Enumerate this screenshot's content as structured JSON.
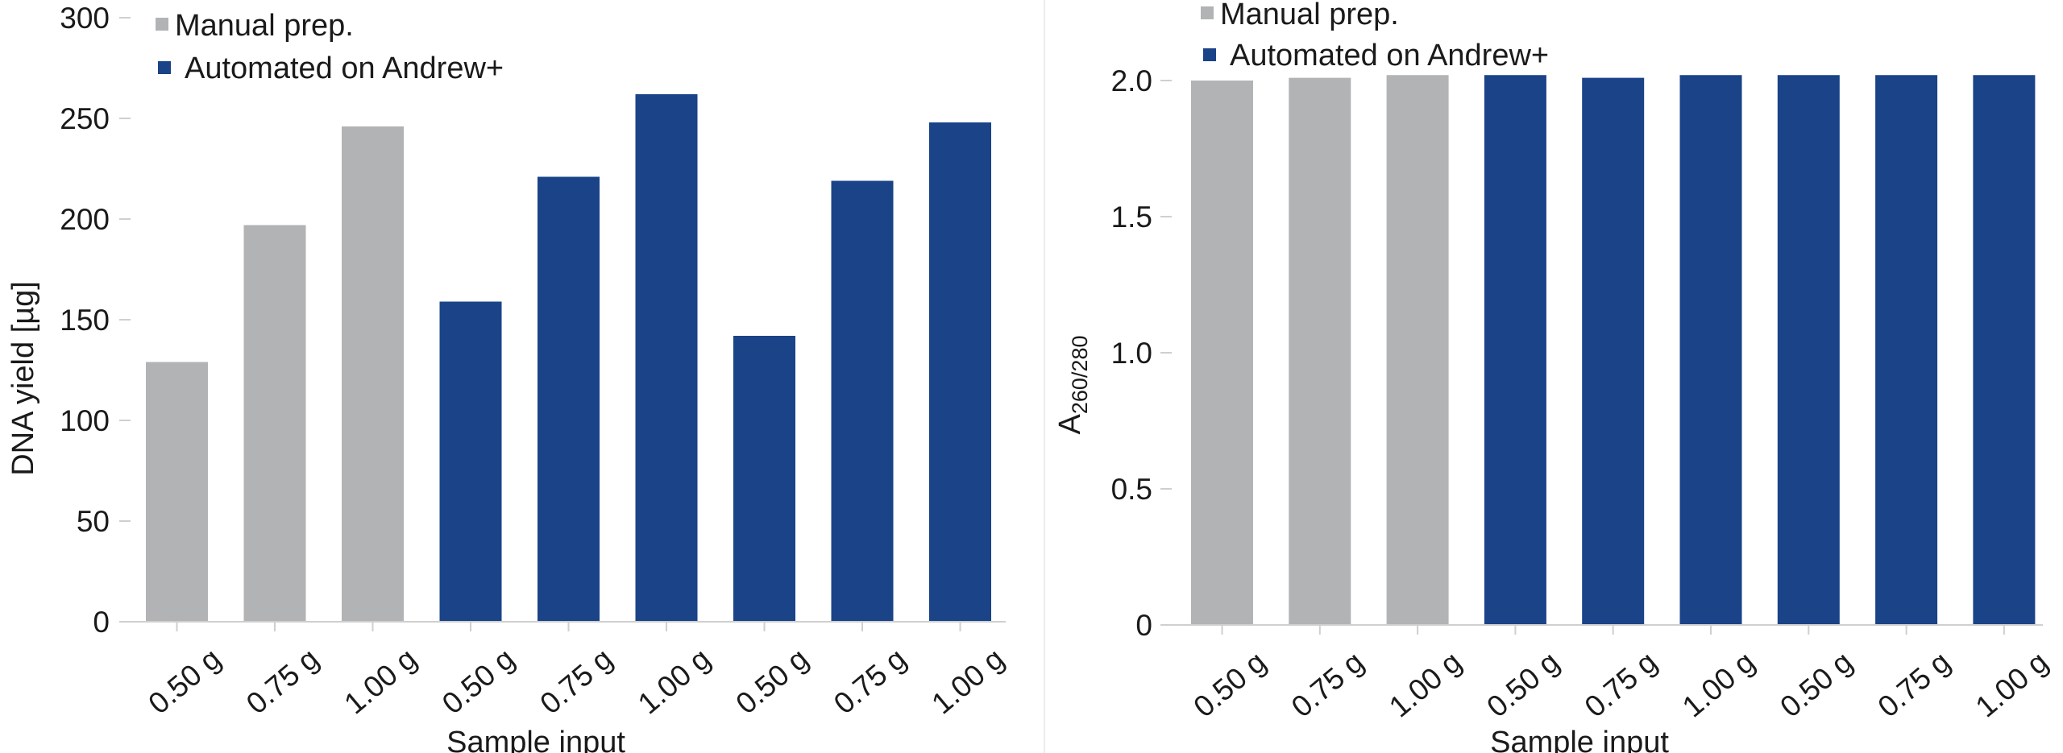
{
  "colors": {
    "manual": "#b2b3b5",
    "automated": "#1a4388"
  },
  "chart_data": [
    {
      "type": "bar",
      "title": "",
      "xlabel": "Sample input",
      "ylabel": "DNA yield [µg]",
      "ylim": [
        0,
        300
      ],
      "yticks": [
        "0",
        "50",
        "100",
        "150",
        "200",
        "250",
        "300"
      ],
      "categories": [
        "0.50 g",
        "0.75 g",
        "1.00 g",
        "0.50 g",
        "0.75 g",
        "1.00 g",
        "0.50 g",
        "0.75 g",
        "1.00 g"
      ],
      "values": [
        129,
        197,
        246,
        159,
        221,
        262,
        142,
        219,
        248
      ],
      "groups": [
        "manual",
        "manual",
        "manual",
        "automated",
        "automated",
        "automated",
        "automated",
        "automated",
        "automated"
      ],
      "legend": [
        {
          "key": "manual",
          "label": "Manual prep."
        },
        {
          "key": "automated",
          "label": "Automated on Andrew+"
        }
      ],
      "legend_position": "top-left"
    },
    {
      "type": "bar",
      "title": "",
      "xlabel": "Sample input",
      "ylabel_main": "A",
      "ylabel_sub": "260/280",
      "ylim": [
        0,
        2.0
      ],
      "yticks": [
        "0",
        "0.5",
        "1.0",
        "1.5",
        "2.0"
      ],
      "categories": [
        "0.50 g",
        "0.75 g",
        "1.00 g",
        "0.50 g",
        "0.75 g",
        "1.00 g",
        "0.50 g",
        "0.75 g",
        "1.00 g"
      ],
      "values": [
        2.0,
        2.01,
        2.02,
        2.02,
        2.01,
        2.02,
        2.02,
        2.02,
        2.02
      ],
      "groups": [
        "manual",
        "manual",
        "manual",
        "automated",
        "automated",
        "automated",
        "automated",
        "automated",
        "automated"
      ],
      "legend": [
        {
          "key": "manual",
          "label": "Manual prep."
        },
        {
          "key": "automated",
          "label": "Automated on Andrew+"
        }
      ],
      "legend_position": "top-left"
    }
  ]
}
